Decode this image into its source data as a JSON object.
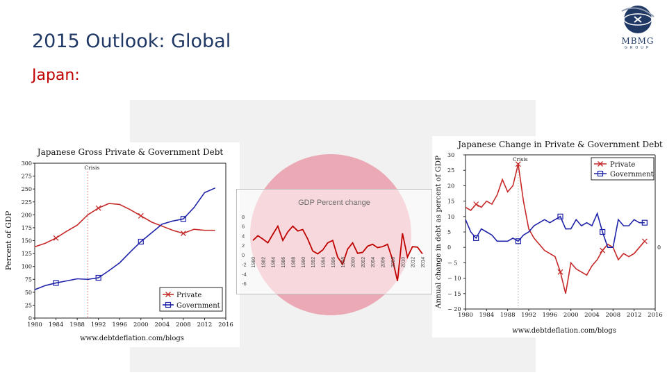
{
  "slide": {
    "title": "2015 Outlook: Global",
    "subtitle": "Japan:"
  },
  "logo": {
    "text": "MBMG",
    "subtext": "GROUP"
  },
  "colors": {
    "title": "#1f3864",
    "subtitle": "#c00000",
    "private": "#c62828",
    "government": "#1e22a8",
    "gdp_line": "#c00000",
    "circle": "#eaa9b4"
  },
  "chart_data": [
    {
      "type": "line",
      "title": "Japanese Gross Private & Government Debt",
      "ylabel": "Percent of GDP",
      "xlabel": "",
      "source": "www.debtdeflation.com/blogs",
      "xlim": [
        1980,
        2016
      ],
      "ylim": [
        0,
        300
      ],
      "x_ticks": [
        "1980",
        "1984",
        "1988",
        "1992",
        "1996",
        "2000",
        "2004",
        "2008",
        "2012",
        "2016"
      ],
      "y_ticks": [
        "0",
        "25",
        "50",
        "75",
        "100",
        "125",
        "150",
        "175",
        "200",
        "225",
        "250",
        "275",
        "300"
      ],
      "annotations": [
        {
          "text": "Crisis",
          "x": 1990
        }
      ],
      "legend": {
        "placement": "bottom-right"
      },
      "grid": false,
      "series": [
        {
          "name": "Private",
          "x": [
            1980,
            1982,
            1984,
            1986,
            1988,
            1990,
            1992,
            1994,
            1996,
            1998,
            2000,
            2002,
            2004,
            2006,
            2008,
            2010,
            2012,
            2014
          ],
          "values": [
            138,
            145,
            155,
            168,
            180,
            200,
            213,
            222,
            220,
            210,
            198,
            186,
            178,
            170,
            164,
            172,
            170,
            170
          ]
        },
        {
          "name": "Government",
          "x": [
            1980,
            1982,
            1984,
            1986,
            1988,
            1990,
            1992,
            1994,
            1996,
            1998,
            2000,
            2002,
            2004,
            2006,
            2008,
            2010,
            2012,
            2014
          ],
          "values": [
            55,
            63,
            68,
            72,
            76,
            75,
            78,
            92,
            107,
            128,
            148,
            165,
            182,
            188,
            192,
            214,
            243,
            252
          ]
        }
      ]
    },
    {
      "type": "line",
      "title": "GDP Percent change",
      "xlabel": "",
      "ylabel": "",
      "ylim": [
        -6,
        8
      ],
      "y_ticks": [
        "8",
        "6",
        "4",
        "2",
        "0",
        "-2",
        "-4",
        "-6"
      ],
      "x_ticks": [
        "1980",
        "1982",
        "1984",
        "1986",
        "1988",
        "1990",
        "1992",
        "1994",
        "1996",
        "1998",
        "2000",
        "2002",
        "2004",
        "2006",
        "2008",
        "2010",
        "2012",
        "2014"
      ],
      "series": [
        {
          "x": [
            1980,
            1981,
            1982,
            1983,
            1984,
            1985,
            1986,
            1987,
            1988,
            1989,
            1990,
            1991,
            1992,
            1993,
            1994,
            1995,
            1996,
            1997,
            1998,
            1999,
            2000,
            2001,
            2002,
            2003,
            2004,
            2005,
            2006,
            2007,
            2008,
            2009,
            2010,
            2011,
            2012,
            2013,
            2014
          ],
          "values": [
            3.0,
            4.0,
            3.3,
            2.5,
            4.3,
            6.0,
            3.0,
            4.8,
            6.0,
            5.0,
            5.3,
            3.3,
            0.8,
            0.2,
            1.0,
            2.5,
            3.0,
            -0.5,
            -2.0,
            1.2,
            2.5,
            0.3,
            0.5,
            1.8,
            2.2,
            1.5,
            1.7,
            2.2,
            -1.0,
            -5.5,
            4.5,
            -0.5,
            1.7,
            1.6,
            0.2
          ]
        }
      ]
    },
    {
      "type": "line",
      "title": "Japanese Change in Private & Government Debt",
      "ylabel": "Annual change in debt as percent of GDP",
      "xlabel": "",
      "source": "www.debtdeflation.com/blogs",
      "xlim": [
        1980,
        2016
      ],
      "ylim": [
        -20,
        30
      ],
      "x_ticks": [
        "1980",
        "1984",
        "1988",
        "1992",
        "1996",
        "2000",
        "2004",
        "2008",
        "2012",
        "2016"
      ],
      "y_ticks": [
        "30",
        "25",
        "20",
        "15",
        "10",
        "5",
        "0",
        "− 5",
        "− 10",
        "− 15",
        "− 20"
      ],
      "annotations": [
        {
          "text": "Crisis",
          "x": 1990
        }
      ],
      "legend": {
        "placement": "top-right"
      },
      "grid": false,
      "series": [
        {
          "name": "Private",
          "x": [
            1980,
            1981,
            1982,
            1983,
            1984,
            1985,
            1986,
            1987,
            1988,
            1989,
            1990,
            1991,
            1992,
            1993,
            1994,
            1995,
            1996,
            1997,
            1998,
            1999,
            2000,
            2001,
            2002,
            2003,
            2004,
            2005,
            2006,
            2007,
            2008,
            2009,
            2010,
            2011,
            2012,
            2013,
            2014
          ],
          "values": [
            13,
            12,
            14,
            13,
            15,
            14,
            17,
            22,
            18,
            20,
            27,
            15,
            6,
            3,
            1,
            -1,
            -2,
            -3,
            -8,
            -15,
            -5,
            -7,
            -8,
            -9,
            -6,
            -4,
            -1,
            1,
            0,
            -4,
            -2,
            -3,
            -2,
            0,
            2
          ]
        },
        {
          "name": "Government",
          "x": [
            1980,
            1981,
            1982,
            1983,
            1984,
            1985,
            1986,
            1987,
            1988,
            1989,
            1990,
            1991,
            1992,
            1993,
            1994,
            1995,
            1996,
            1997,
            1998,
            1999,
            2000,
            2001,
            2002,
            2003,
            2004,
            2005,
            2006,
            2007,
            2008,
            2009,
            2010,
            2011,
            2012,
            2013,
            2014
          ],
          "values": [
            9,
            5,
            3,
            6,
            5,
            4,
            2,
            2,
            2,
            3,
            2,
            4,
            5,
            7,
            8,
            9,
            8,
            9,
            10,
            6,
            6,
            9,
            7,
            8,
            7,
            11,
            5,
            0,
            0,
            9,
            7,
            7,
            9,
            8,
            8
          ]
        }
      ]
    }
  ]
}
